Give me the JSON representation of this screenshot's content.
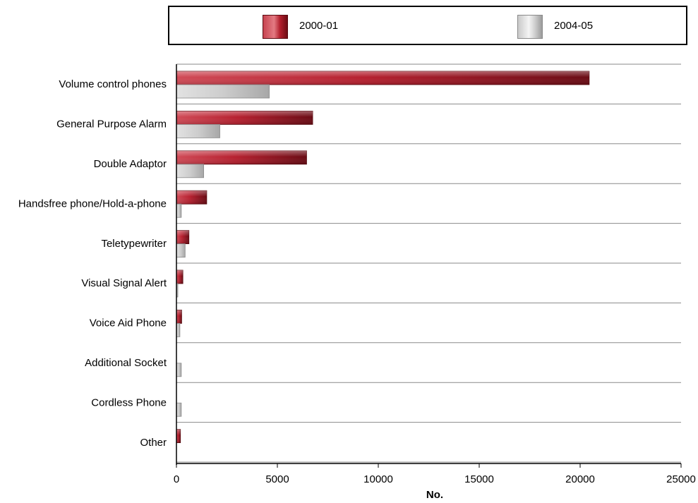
{
  "chart_data": {
    "type": "bar",
    "orientation": "horizontal",
    "categories": [
      "Volume control phones",
      "General Purpose Alarm",
      "Double Adaptor",
      "Handsfree phone/Hold-a-phone",
      "Teletypewriter",
      "Visual Signal Alert",
      "Voice Aid Phone",
      "Additional Socket",
      "Cordless Phone",
      "Other"
    ],
    "series": [
      {
        "name": "2000-01",
        "color": "#b01e2c",
        "values": [
          20450,
          6750,
          6450,
          1500,
          620,
          320,
          260,
          0,
          0,
          200
        ]
      },
      {
        "name": "2004-05",
        "color": "#c8c8c8",
        "values": [
          4600,
          2150,
          1350,
          240,
          430,
          70,
          170,
          240,
          240,
          0
        ]
      }
    ],
    "xlabel": "No.",
    "xlim": [
      0,
      25000
    ],
    "xticks": [
      0,
      5000,
      10000,
      15000,
      20000,
      25000
    ],
    "grid": "horizontal category separators",
    "legend_position": "top"
  }
}
